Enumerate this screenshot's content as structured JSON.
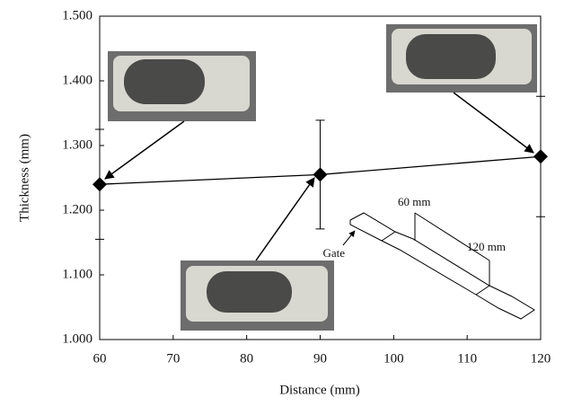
{
  "chart_data": {
    "type": "line",
    "x_label": "Distance (mm)",
    "y_label": "Thickness (mm)",
    "x": [
      60,
      90,
      120
    ],
    "series": [
      {
        "color": "#000000",
        "values": [
          1.24,
          1.255,
          1.283
        ],
        "errors": [
          0.085,
          0.084,
          0.093
        ]
      }
    ],
    "xlim": [
      60,
      120
    ],
    "xticks": [
      60,
      70,
      80,
      90,
      100,
      110,
      120
    ],
    "ylim": [
      1.0,
      1.5
    ],
    "yticks": [
      {
        "value": 1.0,
        "label": "1.000"
      },
      {
        "value": 1.1,
        "label": "1.100"
      },
      {
        "value": 1.2,
        "label": "1.200"
      },
      {
        "value": 1.3,
        "label": "1.300"
      },
      {
        "value": 1.4,
        "label": "1.400"
      },
      {
        "value": 1.5,
        "label": "1.500"
      }
    ],
    "annotations": [
      "60 mm",
      "120 mm",
      "Gate"
    ]
  }
}
